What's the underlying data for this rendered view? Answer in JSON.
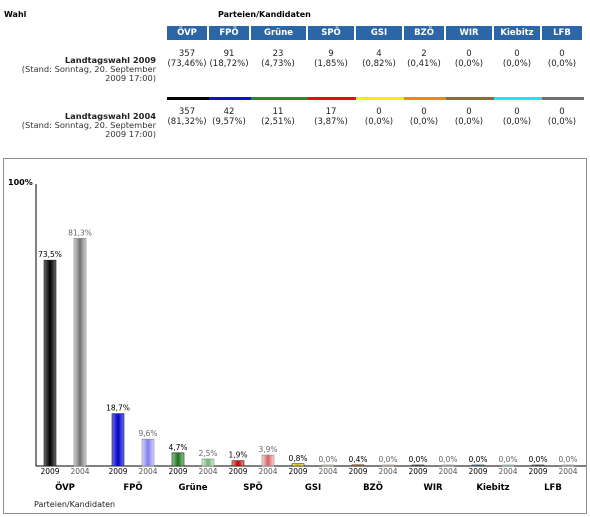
{
  "header": {
    "wahl": "Wahl",
    "parteien": "Parteien/Kandidaten"
  },
  "parties": [
    "ÖVP",
    "FPÖ",
    "Grüne",
    "SPÖ",
    "GSI",
    "BZÖ",
    "WIR",
    "Kiebitz",
    "LFB"
  ],
  "colors": {
    "header_bg": "#2b67a6",
    "party_colors": [
      "#000000",
      "#1010d0",
      "#2a8a2a",
      "#e01010",
      "#ffee00",
      "#f08a00",
      "#8a6b3a",
      "#22e0ff",
      "#707070"
    ]
  },
  "rows": [
    {
      "title": "Landtagswahl 2009",
      "stand": "(Stand: Sonntag, 20. September 2009 17:00)",
      "stand_line1": "(Stand: Sonntag, 20. September",
      "stand_line2": "2009 17:00)",
      "votes": [
        "357",
        "91",
        "23",
        "9",
        "4",
        "2",
        "0",
        "0",
        "0"
      ],
      "pcts": [
        "(73,46%)",
        "(18,72%)",
        "(4,73%)",
        "(1,85%)",
        "(0,82%)",
        "(0,41%)",
        "(0,0%)",
        "(0,0%)",
        "(0,0%)"
      ]
    },
    {
      "title": "Landtagswahl 2004",
      "stand": "(Stand: Sonntag, 20. September 2009 17:00)",
      "stand_line1": "(Stand: Sonntag, 20. September",
      "stand_line2": "2009 17:00)",
      "votes": [
        "357",
        "42",
        "11",
        "17",
        "0",
        "0",
        "0",
        "0",
        "0"
      ],
      "pcts": [
        "(81,32%)",
        "(9,57%)",
        "(2,51%)",
        "(3,87%)",
        "(0,0%)",
        "(0,0%)",
        "(0,0%)",
        "(0,0%)",
        "(0,0%)"
      ]
    }
  ],
  "chart_data": {
    "type": "bar",
    "categories": [
      "ÖVP",
      "FPÖ",
      "Grüne",
      "SPÖ",
      "GSI",
      "BZÖ",
      "WIR",
      "Kiebitz",
      "LFB"
    ],
    "series": [
      {
        "name": "2009",
        "values": [
          73.5,
          18.7,
          4.7,
          1.9,
          0.8,
          0.4,
          0.0,
          0.0,
          0.0
        ],
        "labels": [
          "73,5%",
          "18,7%",
          "4,7%",
          "1,9%",
          "0,8%",
          "0,4%",
          "0,0%",
          "0,0%",
          "0,0%"
        ]
      },
      {
        "name": "2004",
        "values": [
          81.3,
          9.6,
          2.5,
          3.9,
          0.0,
          0.0,
          0.0,
          0.0,
          0.0
        ],
        "labels": [
          "81,3%",
          "9,6%",
          "2,5%",
          "3,9%",
          "0,0%",
          "0,0%",
          "0,0%",
          "0,0%",
          "0,0%"
        ]
      }
    ],
    "ymax_label": "100%",
    "xlabel": "Parteien/Kandidaten",
    "ylim": [
      0,
      100
    ],
    "grid": false,
    "legend": "none"
  }
}
